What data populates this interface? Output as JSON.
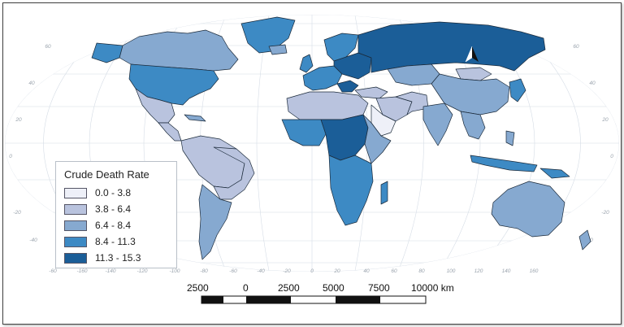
{
  "legend": {
    "title": "Crude Death Rate",
    "classes": [
      {
        "label": "0.0 - 3.8",
        "color": "#eef0f8"
      },
      {
        "label": "3.8 - 6.4",
        "color": "#b9c3de"
      },
      {
        "label": "6.4 - 8.4",
        "color": "#86a9d0"
      },
      {
        "label": "8.4 - 11.3",
        "color": "#3d8ac4"
      },
      {
        "label": "11.3 - 15.3",
        "color": "#1b5e98"
      }
    ]
  },
  "scale_bar": {
    "labels": [
      "2500",
      "0",
      "2500",
      "5000",
      "7500",
      "10000 km"
    ]
  },
  "graticule": {
    "lon_labels": [
      "-60",
      "-160",
      "-140",
      "-120",
      "-100",
      "-80",
      "-60",
      "-40",
      "-20",
      "0",
      "20",
      "40",
      "60",
      "80",
      "100",
      "120",
      "140",
      "160"
    ],
    "lat_labels_left": [
      "60",
      "40",
      "20",
      "0",
      "-20",
      "-40"
    ],
    "lat_labels_right": [
      "60",
      "40",
      "20",
      "0",
      "-20",
      "-40"
    ]
  },
  "north_arrow": {
    "icon": "north-arrow-icon"
  }
}
